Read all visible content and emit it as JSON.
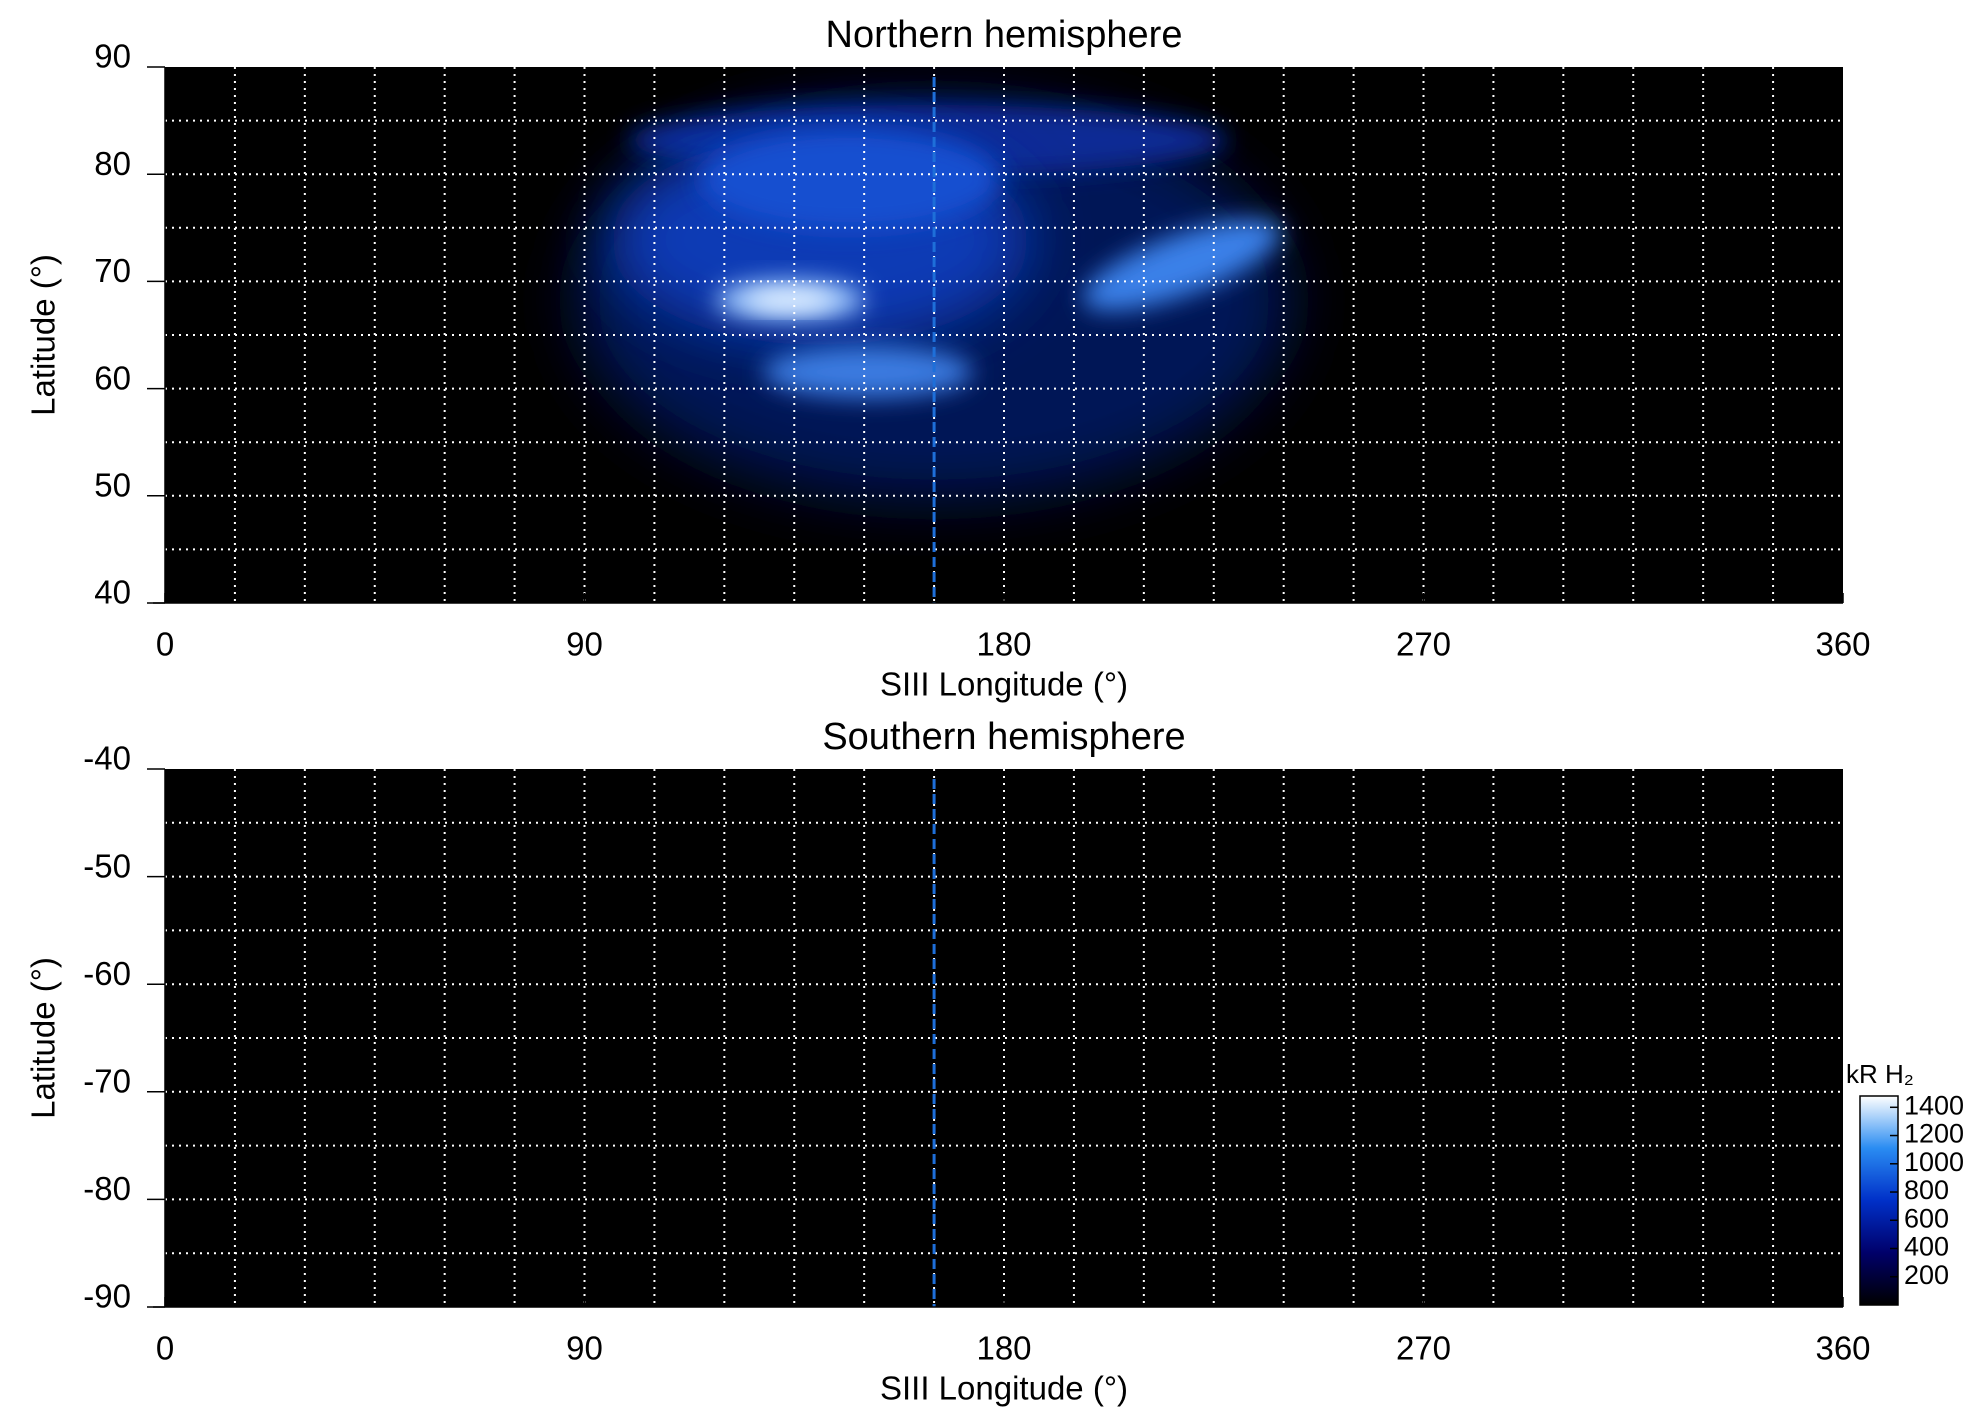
{
  "chart_data": [
    {
      "type": "heatmap",
      "title": "Northern hemisphere",
      "x_label": "SIII Longitude (°)",
      "y_label": "Latitude (°)",
      "xlim": [
        0,
        360
      ],
      "xticks": [
        0,
        90,
        180,
        270,
        360
      ],
      "ylim": [
        40,
        90
      ],
      "yticks": [
        40,
        50,
        60,
        70,
        80,
        90
      ],
      "xgrid": [
        15,
        30,
        45,
        60,
        75,
        90,
        105,
        120,
        135,
        150,
        165,
        180,
        195,
        210,
        225,
        240,
        255,
        270,
        285,
        300,
        315,
        330,
        345
      ],
      "ygrid": [
        45,
        50,
        55,
        60,
        65,
        70,
        75,
        80,
        85
      ],
      "grid": true,
      "reference_x": 165,
      "reference_color": "#1e6fd9"
    },
    {
      "type": "heatmap",
      "title": "Southern hemisphere",
      "x_label": "SIII Longitude (°)",
      "y_label": "Latitude (°)",
      "xlim": [
        0,
        360
      ],
      "xticks": [
        0,
        90,
        180,
        270,
        360
      ],
      "ylim": [
        -90,
        -40
      ],
      "yticks": [
        -90,
        -80,
        -70,
        -60,
        -50,
        -40
      ],
      "xgrid": [
        15,
        30,
        45,
        60,
        75,
        90,
        105,
        120,
        135,
        150,
        165,
        180,
        195,
        210,
        225,
        240,
        255,
        270,
        285,
        300,
        315,
        330,
        345
      ],
      "ygrid": [
        -85,
        -80,
        -75,
        -70,
        -65,
        -60,
        -55,
        -50,
        -45
      ],
      "grid": true,
      "reference_x": 165,
      "reference_color": "#1e6fd9",
      "colorbar": {
        "title": "kR H₂",
        "lim": [
          0,
          1480
        ],
        "ticks": [
          200,
          400,
          600,
          800,
          1000,
          1200,
          1400
        ],
        "colors": [
          "#000000",
          "#00006a",
          "#0030c8",
          "#2a8cf2",
          "#ffffff"
        ]
      }
    }
  ]
}
